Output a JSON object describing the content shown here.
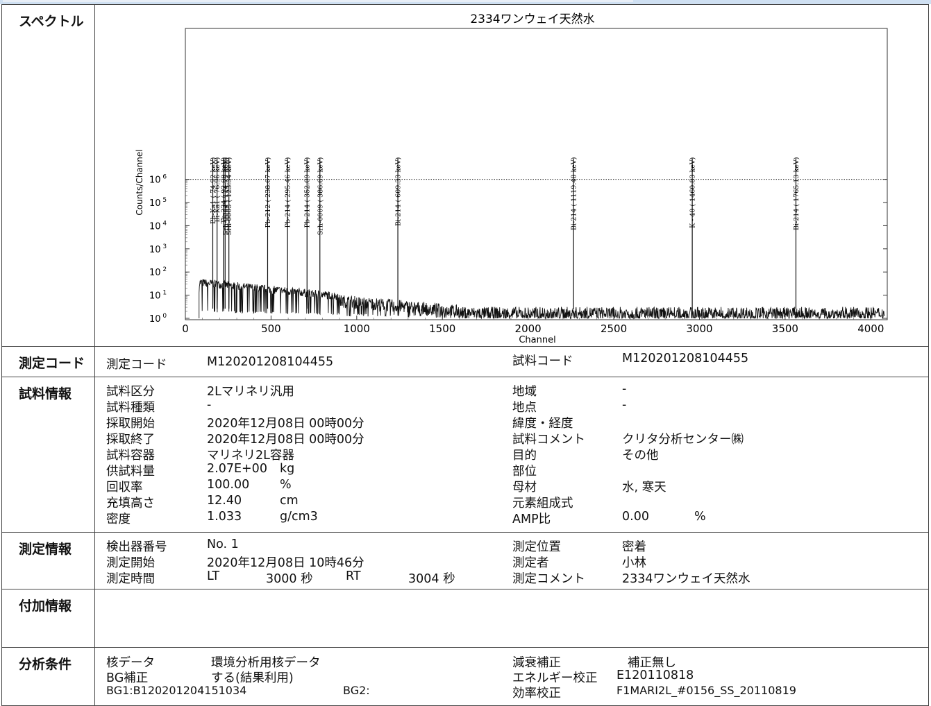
{
  "spectrum": {
    "label": "スペクトル",
    "title": "2334ワンウェイ天然水",
    "ylabel": "Counts/Channel",
    "xlabel": "Channel"
  },
  "chart_data": {
    "type": "line",
    "title": "2334ワンウェイ天然水",
    "xlabel": "Channel",
    "ylabel": "Counts/Channel",
    "xlim": [
      0,
      4096
    ],
    "ylim": [
      1,
      10000000
    ],
    "yscale": "log",
    "x_ticks": [
      "0",
      "500",
      "1000",
      "1500",
      "2000",
      "2500",
      "3000",
      "3500",
      "4000"
    ],
    "y_ticks": [
      "10 0",
      "10 1",
      "10 2",
      "10 3",
      "10 4",
      "10 5",
      "10 6"
    ],
    "reference_line_y": 1000000,
    "peaks": [
      {
        "label": "Pb-Ka1 (  74.92 keV)",
        "channel": 160
      },
      {
        "label": "Bi-Ka1 (  76.96 keV)",
        "channel": 185
      },
      {
        "label": "Th-234 (  92.69 keV)",
        "channel": 222
      },
      {
        "label": "Srh-0004 ( 114.79 keV)",
        "channel": 232
      },
      {
        "label": "Srh-0005 ( 123.34 keV)",
        "channel": 254
      },
      {
        "label": "Pb-212 ( 238.67 keV)",
        "channel": 480
      },
      {
        "label": "Pb-214 ( 295.46 keV)",
        "channel": 596
      },
      {
        "label": "Pb-214 ( 352.09 keV)",
        "channel": 710
      },
      {
        "label": "Srh-0009 ( 386.69 keV)",
        "channel": 785
      },
      {
        "label": "Bi-214 ( 609.33 keV)",
        "channel": 1240
      },
      {
        "label": "Bi-214 ( 1119.48 keV)",
        "channel": 2265
      },
      {
        "label": "K - 40 ( 1460.83 keV)",
        "channel": 2958
      },
      {
        "label": "Bi-214 ( 1765.13 keV)",
        "channel": 3563
      }
    ]
  },
  "code": {
    "label": "測定コード",
    "k1": "測定コード",
    "v1": "M120201208104455",
    "k2": "試料コード",
    "v2": "M120201208104455"
  },
  "sample": {
    "label": "試料情報",
    "left": [
      {
        "k": "試料区分",
        "v": "2Lマリネリ汎用",
        "u": ""
      },
      {
        "k": "試料種類",
        "v": "-",
        "u": ""
      },
      {
        "k": "採取開始",
        "v": "2020年12月08日 00時00分",
        "u": ""
      },
      {
        "k": "採取終了",
        "v": "2020年12月08日 00時00分",
        "u": ""
      },
      {
        "k": "試料容器",
        "v": "マリネリ2L容器",
        "u": ""
      },
      {
        "k": "供試料量",
        "v": "2.07E+00",
        "u": "kg"
      },
      {
        "k": "回収率",
        "v": "100.00",
        "u": "%"
      },
      {
        "k": "充填高さ",
        "v": "12.40",
        "u": "cm"
      },
      {
        "k": "密度",
        "v": "1.033",
        "u": "g/cm3"
      }
    ],
    "right": [
      {
        "k": "地域",
        "v": "-",
        "u": ""
      },
      {
        "k": "地点",
        "v": "-",
        "u": ""
      },
      {
        "k": "緯度・経度",
        "v": "",
        "u": ""
      },
      {
        "k": "試料コメント",
        "v": "クリタ分析センター㈱",
        "u": ""
      },
      {
        "k": "目的",
        "v": "その他",
        "u": ""
      },
      {
        "k": "部位",
        "v": "",
        "u": ""
      },
      {
        "k": "母材",
        "v": "水, 寒天",
        "u": ""
      },
      {
        "k": "元素組成式",
        "v": "",
        "u": ""
      },
      {
        "k": "AMP比",
        "v": "0.00",
        "u": "%"
      }
    ]
  },
  "measure": {
    "label": "測定情報",
    "k1": "検出器番号",
    "v1": "No. 1",
    "k2": "測定開始",
    "v2": "2020年12月08日 10時46分",
    "k3": "測定時間",
    "lt": "LT",
    "lt_v": "3000 秒",
    "rt": "RT",
    "rt_v": "3004 秒",
    "r1k": "測定位置",
    "r1v": "密着",
    "r2k": "測定者",
    "r2v": "小林",
    "r3k": "測定コメント",
    "r3v": "2334ワンウェイ天然水"
  },
  "extra": {
    "label": "付加情報"
  },
  "analysis": {
    "label": "分析条件",
    "k1": "核データ",
    "v1": "環境分析用核データ",
    "k2": "BG補正",
    "v2": "する(結果利用)",
    "bg1": "BG1:B120201204151034",
    "bg2": "BG2:",
    "r1k": "減衰補正",
    "r1v": "補正無し",
    "r2k": "エネルギー校正",
    "r2v": "E120110818",
    "r3k": "効率校正",
    "r3v": "F1MARI2L_#0156_SS_20110819"
  }
}
